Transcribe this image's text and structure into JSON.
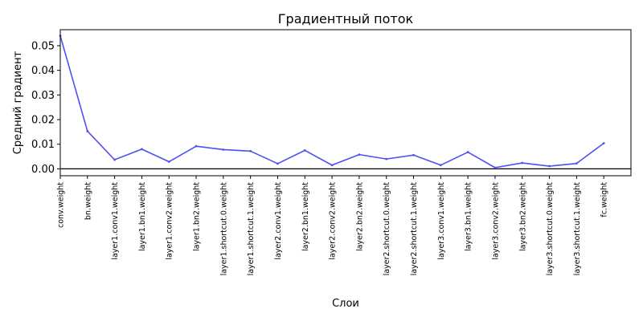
{
  "chart_data": {
    "type": "line",
    "title": "Градиентный поток",
    "xlabel": "Слои",
    "ylabel": "Средний градиент",
    "categories": [
      "conv.weight",
      "bn.weight",
      "layer1.conv1.weight",
      "layer1.bn1.weight",
      "layer1.conv2.weight",
      "layer1.bn2.weight",
      "layer1.shortcut.0.weight",
      "layer1.shortcut.1.weight",
      "layer2.conv1.weight",
      "layer2.bn1.weight",
      "layer2.conv2.weight",
      "layer2.bn2.weight",
      "layer2.shortcut.0.weight",
      "layer2.shortcut.1.weight",
      "layer3.conv1.weight",
      "layer3.bn1.weight",
      "layer3.conv2.weight",
      "layer3.bn2.weight",
      "layer3.shortcut.0.weight",
      "layer3.shortcut.1.weight",
      "fc.weight"
    ],
    "series": [
      {
        "values": [
          0.054,
          0.0153,
          0.0037,
          0.008,
          0.0029,
          0.0092,
          0.0078,
          0.0072,
          0.0021,
          0.0075,
          0.0015,
          0.0058,
          0.004,
          0.0056,
          0.0015,
          0.0068,
          0.0005,
          0.0024,
          0.0011,
          0.0022,
          0.0104
        ],
        "color": "#4f4ff5"
      }
    ],
    "yticks": [
      "0.00",
      "0.01",
      "0.02",
      "0.03",
      "0.04",
      "0.05"
    ],
    "ylim": [
      -0.0028,
      0.0565
    ],
    "hline": 0,
    "hline_color": "#000000",
    "grid": false,
    "legend": "none"
  }
}
